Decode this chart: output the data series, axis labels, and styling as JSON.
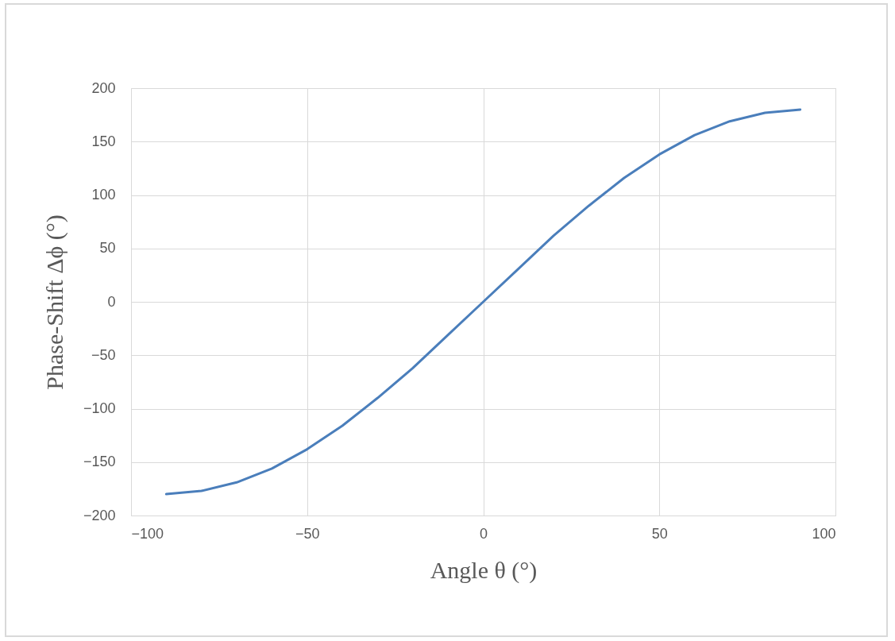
{
  "chart_data": {
    "type": "line",
    "xlabel": "Angle θ (°)",
    "ylabel": "Phase-Shift Δϕ (°)",
    "x": [
      -90,
      -80,
      -70,
      -60,
      -50,
      -40,
      -30,
      -20,
      -10,
      0,
      10,
      20,
      30,
      40,
      50,
      60,
      70,
      80,
      90
    ],
    "series": [
      {
        "color": "#4a7ebb",
        "values": [
          -180,
          -177,
          -169,
          -156,
          -138,
          -116,
          -90,
          -62,
          -31,
          0,
          31,
          62,
          90,
          116,
          138,
          156,
          169,
          177,
          180
        ]
      }
    ],
    "xlim": [
      -100,
      100
    ],
    "xticks": [
      -100,
      -50,
      0,
      50,
      100
    ],
    "ylim": [
      -200,
      200
    ],
    "yticks": [
      -200,
      -150,
      -100,
      -50,
      0,
      50,
      100,
      150,
      200
    ],
    "grid": true,
    "marker": "none",
    "line_style": "solid"
  }
}
